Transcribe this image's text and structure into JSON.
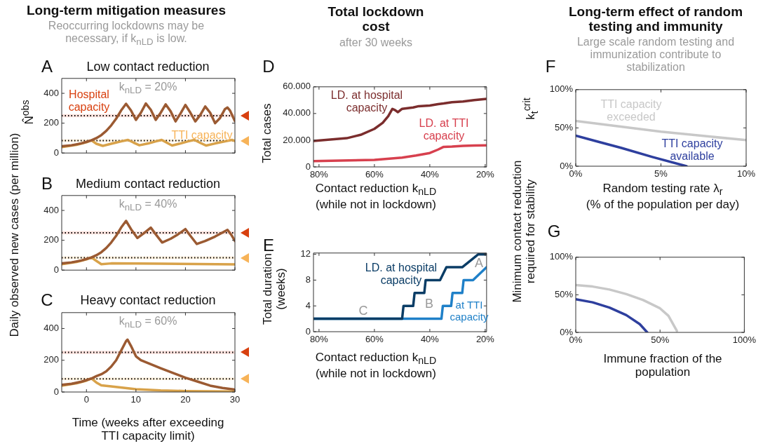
{
  "chart_data": [
    {
      "type": "other",
      "title": "Long-term mitigation measures",
      "subtitle": "Reoccurring lockdowns may be necessary, if k$_{nLD}$ is low."
    },
    {
      "type": "line",
      "title": "Low contact reduction",
      "ylabel": "N̂$^{obs}$",
      "annotations": [
        "A",
        "k$_{nLD}$ = 20%"
      ],
      "xlim": [
        -5,
        30
      ],
      "xticks": [
        0,
        10,
        20,
        30
      ],
      "ylim": [
        0,
        500
      ],
      "yticks": [
        0,
        200,
        400
      ],
      "tick_labels": "y",
      "marker": "none",
      "ref_lines": [
        {
          "axis": "y",
          "value": 250,
          "label": "Hospital capacity",
          "color": "#000000",
          "line_style": "dotted"
        },
        {
          "axis": "y",
          "value": 83,
          "label": "TTI capacity",
          "color": "#000000",
          "line_style": "dotted"
        }
      ],
      "bands": [
        {
          "axis": "y",
          "from": 240,
          "to": 260,
          "color": "#fbe1dc"
        },
        {
          "axis": "y",
          "from": 75,
          "to": 91,
          "color": "#fdefdb"
        }
      ],
      "series": [
        {
          "color": "#9b5a32",
          "x": [
            -5,
            -3,
            -1,
            0,
            1,
            2,
            3,
            4,
            5,
            6,
            7,
            8,
            9,
            10,
            11,
            12,
            13,
            14,
            15,
            16,
            17,
            18,
            19,
            20,
            21,
            22,
            23,
            24,
            25,
            26,
            27,
            28,
            28.5,
            29,
            30
          ],
          "values": [
            45,
            52,
            65,
            75,
            85,
            100,
            120,
            148,
            185,
            230,
            285,
            330,
            285,
            222,
            270,
            332,
            290,
            222,
            270,
            326,
            280,
            212,
            265,
            322,
            270,
            212,
            255,
            312,
            270,
            200,
            235,
            295,
            305,
            285,
            213
          ]
        },
        {
          "color": "#d8a24a",
          "x": [
            -5,
            -2,
            0,
            1,
            2,
            3.3,
            5,
            7,
            8.4,
            9.5,
            10.7,
            12.5,
            14,
            15.2,
            16.3,
            17.3,
            19,
            20.5,
            21.8,
            23,
            24.2,
            26,
            28,
            29.4,
            30
          ],
          "values": [
            40,
            55,
            72,
            85,
            62,
            48,
            62,
            78,
            88,
            70,
            52,
            64,
            78,
            88,
            68,
            50,
            64,
            78,
            88,
            68,
            50,
            64,
            78,
            88,
            80
          ]
        }
      ]
    },
    {
      "type": "line",
      "title": "Medium contact reduction",
      "ylabel": "Daily observed new cases (per million)",
      "annotations": [
        "B",
        "k$_{nLD}$ = 40%"
      ],
      "xlim": [
        -5,
        30
      ],
      "xticks": [
        0,
        10,
        20,
        30
      ],
      "ylim": [
        0,
        500
      ],
      "yticks": [
        0,
        200,
        400
      ],
      "tick_labels": "y",
      "marker": "none",
      "ref_lines": [
        {
          "axis": "y",
          "value": 250,
          "color": "#000000",
          "line_style": "dotted"
        },
        {
          "axis": "y",
          "value": 83,
          "color": "#000000",
          "line_style": "dotted"
        }
      ],
      "bands": [
        {
          "axis": "y",
          "from": 240,
          "to": 260,
          "color": "#fbe1dc"
        },
        {
          "axis": "y",
          "from": 75,
          "to": 91,
          "color": "#fdefdb"
        }
      ],
      "series": [
        {
          "color": "#9b5a32",
          "x": [
            -5,
            -3,
            -1,
            0,
            1,
            2,
            3,
            4,
            5,
            6,
            7,
            8,
            9,
            10.3,
            11.5,
            13,
            14,
            15.3,
            17,
            18.5,
            20,
            21,
            22.3,
            24,
            26,
            28.5,
            29.3,
            30
          ],
          "values": [
            45,
            52,
            65,
            75,
            85,
            100,
            120,
            148,
            185,
            230,
            285,
            330,
            275,
            215,
            245,
            285,
            240,
            185,
            210,
            240,
            275,
            230,
            175,
            195,
            225,
            270,
            235,
            195
          ]
        },
        {
          "color": "#d8a24a",
          "x": [
            -5,
            -2,
            0,
            1,
            2,
            3,
            5,
            15,
            30
          ],
          "values": [
            40,
            55,
            72,
            85,
            62,
            40,
            45,
            43,
            38
          ]
        }
      ]
    },
    {
      "type": "line",
      "title": "Heavy contact reduction",
      "xlabel": "Time (weeks after exceeding\nTTI capacity limit)",
      "annotations": [
        "C",
        "k$_{nLD}$ = 60%"
      ],
      "xlim": [
        -5,
        30
      ],
      "xticks": [
        0,
        10,
        20,
        30
      ],
      "ylim": [
        0,
        500
      ],
      "yticks": [
        0,
        200,
        400
      ],
      "marker": "none",
      "ref_lines": [
        {
          "axis": "y",
          "value": 250,
          "color": "#000000",
          "line_style": "dotted"
        },
        {
          "axis": "y",
          "value": 83,
          "color": "#000000",
          "line_style": "dotted"
        }
      ],
      "bands": [
        {
          "axis": "y",
          "from": 240,
          "to": 260,
          "color": "#fbe1dc"
        },
        {
          "axis": "y",
          "from": 75,
          "to": 91,
          "color": "#fdefdb"
        }
      ],
      "series": [
        {
          "color": "#9b5a32",
          "x": [
            -5,
            -3,
            -1,
            0,
            1,
            2,
            3,
            4,
            5,
            6,
            7,
            8,
            8.3,
            9,
            10,
            11,
            13,
            15,
            17.5,
            20,
            22.5,
            25,
            27.5,
            30
          ],
          "values": [
            45,
            52,
            65,
            75,
            85,
            100,
            112,
            130,
            160,
            200,
            260,
            320,
            330,
            290,
            225,
            200,
            175,
            150,
            120,
            90,
            65,
            40,
            25,
            15
          ]
        },
        {
          "color": "#d8a24a",
          "x": [
            -5,
            -2,
            0,
            1,
            2,
            3,
            5,
            10,
            15,
            20,
            25,
            30
          ],
          "values": [
            40,
            55,
            72,
            85,
            60,
            42,
            35,
            18,
            10,
            6,
            4,
            3
          ]
        }
      ]
    },
    {
      "type": "other",
      "title": "Total lockdown cost",
      "subtitle": "after 30 weeks"
    },
    {
      "type": "line",
      "ylabel": "Total cases",
      "xlabel": "Contact reduction k$_{nLD}$\n(while not in lockdown)",
      "annotations": [
        "D"
      ],
      "xlim": [
        82,
        19.5
      ],
      "xticks": [
        {
          "value": 80,
          "label": "80%"
        },
        {
          "value": 60,
          "label": "60%"
        },
        {
          "value": 40,
          "label": "40%"
        },
        {
          "value": 20,
          "label": "20%"
        }
      ],
      "ylim": [
        0,
        60000
      ],
      "yticks": [
        0,
        {
          "value": 20000,
          "label": "20.000"
        },
        {
          "value": 40000,
          "label": "40.000"
        },
        {
          "value": 60000,
          "label": "60.000"
        }
      ],
      "marker": "none",
      "series": [
        {
          "name": "LD. at hospital capacity",
          "color": "#7b2d2d",
          "x": [
            82,
            70,
            65,
            60,
            57,
            55,
            53.5,
            52.5,
            51.5,
            50,
            48,
            46,
            44,
            40,
            37,
            35,
            32,
            28,
            24,
            19.5
          ],
          "values": [
            19500,
            21500,
            24000,
            28500,
            33000,
            38000,
            43500,
            42500,
            41000,
            43500,
            44000,
            44500,
            45500,
            46000,
            47000,
            47500,
            48500,
            49000,
            50000,
            51000
          ]
        },
        {
          "name": "LD. at TTI capacity",
          "color": "#d7404e",
          "x": [
            82,
            60,
            50,
            45,
            40,
            37,
            35,
            32,
            28,
            24,
            19.5
          ],
          "values": [
            4300,
            5300,
            7000,
            8500,
            10400,
            13000,
            15000,
            15200,
            15800,
            16000,
            16200
          ]
        }
      ]
    },
    {
      "type": "line",
      "ylabel": "Total duration\n(weeks)",
      "xlabel": "Contact reduction k$_{nLD}$\n(while not in lockdown)",
      "annotations": [
        "E",
        "A",
        "B",
        "C"
      ],
      "xlim": [
        82,
        19.5
      ],
      "xticks": [
        {
          "value": 80,
          "label": "80%"
        },
        {
          "value": 60,
          "label": "60%"
        },
        {
          "value": 40,
          "label": "40%"
        },
        {
          "value": 20,
          "label": "20%"
        }
      ],
      "ylim": [
        0,
        12.2
      ],
      "yticks": [
        0,
        4,
        8,
        12
      ],
      "marker": "none",
      "series": [
        {
          "name": "LD. at hospital capacity",
          "color": "#0b3d66",
          "x": [
            82,
            50,
            49.5,
            46,
            45.5,
            42,
            41.5,
            36.3,
            34,
            28.3,
            22.5,
            19.5
          ],
          "values": [
            2,
            2,
            4,
            4,
            6,
            6,
            8,
            8,
            10,
            10,
            12,
            12
          ]
        },
        {
          "name": "at TTI capacity",
          "color": "#1f80c8",
          "x": [
            82,
            35.8,
            35.3,
            32.3,
            31.8,
            28.3,
            27.8,
            24.4,
            19.5
          ],
          "values": [
            2,
            2,
            4,
            4,
            6,
            6,
            8,
            8,
            10
          ]
        }
      ]
    },
    {
      "type": "other",
      "title": "Long-term effect of random testing and immunity",
      "subtitle": "Large scale random testing and immunization contribute to stabilization"
    },
    {
      "type": "line",
      "ylabel": "k$_{t}$$^{crit}$",
      "xlabel": "Random testing rate λ$_{r}$\n(% of the population per day)",
      "annotations": [
        "F"
      ],
      "xlim": [
        0,
        10
      ],
      "xticks": [
        {
          "value": 0,
          "label": "0%"
        },
        {
          "value": 5,
          "label": "5%"
        },
        {
          "value": 10,
          "label": "10%"
        }
      ],
      "ylim": [
        0,
        100
      ],
      "yticks": [
        {
          "value": 0,
          "label": "0%"
        },
        {
          "value": 50,
          "label": "50%"
        },
        {
          "value": 100,
          "label": "100%"
        }
      ],
      "marker": "none",
      "series": [
        {
          "name": "TTI capacity exceeded",
          "color": "#c8c8c8",
          "x": [
            0,
            5,
            10
          ],
          "values": [
            59,
            45,
            34
          ]
        },
        {
          "name": "TTI capacity available",
          "color": "#2e3f9e",
          "x": [
            0,
            1.3,
            2.65,
            4.5,
            6.5
          ],
          "values": [
            40,
            32,
            24,
            12,
            0
          ]
        }
      ]
    },
    {
      "type": "line",
      "ylabel": "Minimum contact reduction\nrequired for stability",
      "xlabel": "Immune fraction of the\npopulation",
      "annotations": [
        "G"
      ],
      "xlim": [
        0,
        100
      ],
      "xticks": [
        {
          "value": 0,
          "label": "0%"
        },
        {
          "value": 50,
          "label": "50%"
        },
        {
          "value": 100,
          "label": "100%"
        }
      ],
      "ylim": [
        0,
        100
      ],
      "yticks": [
        {
          "value": 0,
          "label": "0%"
        },
        {
          "value": 50,
          "label": "50%"
        },
        {
          "value": 100,
          "label": "100%"
        }
      ],
      "marker": "none",
      "series": [
        {
          "color": "#c8c8c8",
          "x": [
            0,
            10,
            20,
            30,
            40,
            50,
            55,
            60
          ],
          "values": [
            63,
            61,
            57,
            51,
            43,
            32,
            22,
            2
          ]
        },
        {
          "color": "#2e3f9e",
          "x": [
            0,
            10,
            20,
            30,
            38,
            42.4
          ],
          "values": [
            44,
            40,
            33,
            23,
            11,
            0
          ]
        }
      ]
    }
  ]
}
